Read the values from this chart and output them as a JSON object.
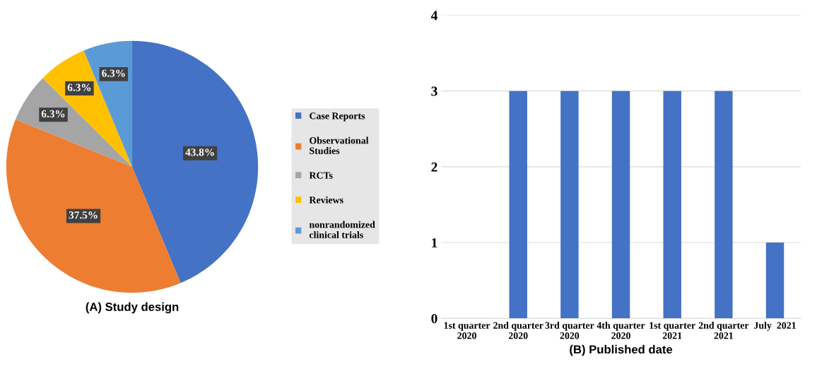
{
  "chart_data": [
    {
      "type": "pie",
      "title": "(A) Study design",
      "categories": [
        "Case Reports",
        "Observational\nStudies",
        "RCTs",
        "Reviews",
        "nonrandomized\nclinical trials"
      ],
      "values": [
        43.8,
        37.5,
        6.3,
        6.3,
        6.3
      ],
      "value_labels": [
        "43.8%",
        "37.5%",
        "6.3%",
        "6.3%",
        "6.3%"
      ],
      "colors": [
        "#4472c4",
        "#ed7d31",
        "#a5a5a5",
        "#ffc000",
        "#5b9bd5"
      ],
      "legend": "right"
    },
    {
      "type": "bar",
      "xlabel": "(B) Published date",
      "categories": [
        "1st quarter\n2020",
        "2nd quarter\n2020",
        "3rd quarter\n2020",
        "4th quarter\n2020",
        "1st quarter\n2021",
        "2nd quarter\n2021",
        "July  2021"
      ],
      "values": [
        0,
        3,
        3,
        3,
        3,
        3,
        1
      ],
      "color": "#4472c4",
      "ylim": [
        0,
        4
      ],
      "yticks": [
        0,
        1,
        2,
        3,
        4
      ],
      "grid": "y"
    }
  ]
}
